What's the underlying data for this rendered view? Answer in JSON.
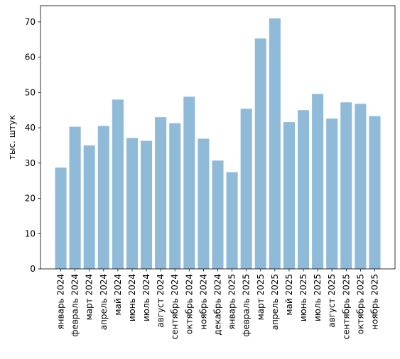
{
  "chart_data": {
    "type": "bar",
    "title": "",
    "xlabel": "",
    "ylabel": "тыс. штук",
    "ylim": [
      0,
      74.6
    ],
    "yticks": [
      0,
      10,
      20,
      30,
      40,
      50,
      60,
      70
    ],
    "grid": false,
    "bar_color": "#8fbbd9",
    "categories": [
      "январь 2024",
      "февраль 2024",
      "март 2024",
      "апрель 2024",
      "май 2024",
      "июнь 2024",
      "июль 2024",
      "август 2024",
      "сентябрь 2024",
      "октябрь 2024",
      "ноябрь 2024",
      "декабрь 2024",
      "январь 2025",
      "февраль 2025",
      "март 2025",
      "апрель 2025",
      "май 2025",
      "июнь 2025",
      "июль 2025",
      "август 2025",
      "сентябрь 2025",
      "октябрь 2025",
      "ноябрь 2025"
    ],
    "values": [
      28.7,
      40.3,
      35.0,
      40.5,
      48.0,
      37.1,
      36.3,
      43.0,
      41.3,
      48.8,
      36.9,
      30.7,
      27.4,
      45.4,
      65.3,
      71.0,
      41.6,
      45.0,
      49.6,
      42.6,
      47.2,
      46.8,
      43.3
    ]
  }
}
